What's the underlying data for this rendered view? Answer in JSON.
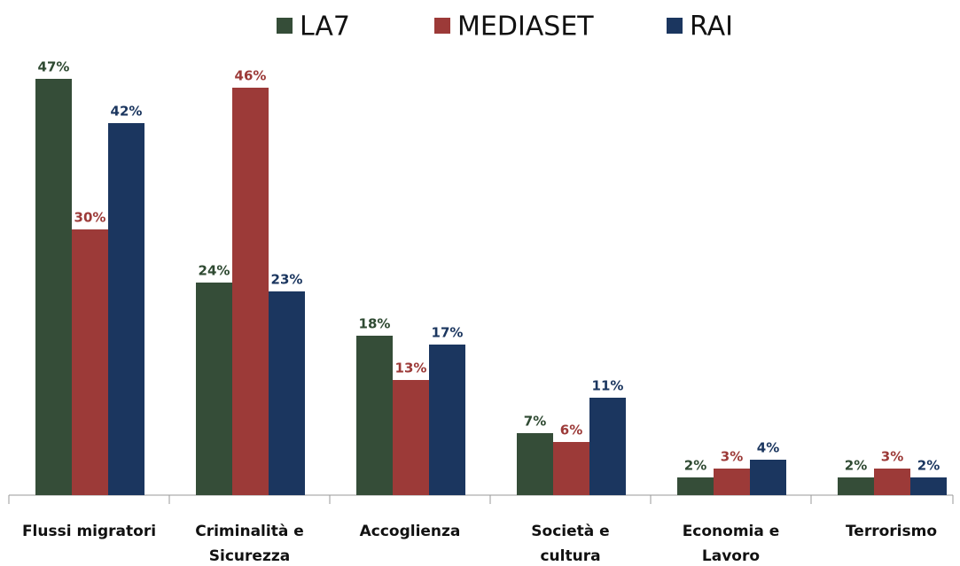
{
  "chart_data": {
    "type": "bar",
    "categories": [
      "Flussi migratori",
      "Criminalità e\nSicurezza",
      "Accoglienza",
      "Società e\ncultura",
      "Economia e\nLavoro",
      "Terrorismo"
    ],
    "series": [
      {
        "name": "LA7",
        "color": "#354d38",
        "label_color": "#2f4a32",
        "values": [
          47,
          24,
          18,
          7,
          2,
          2
        ],
        "value_labels": [
          "47%",
          "24%",
          "18%",
          "7%",
          "2%",
          "2%"
        ]
      },
      {
        "name": "MEDIASET",
        "color": "#9c3a38",
        "label_color": "#9c3a38",
        "values": [
          30,
          46,
          13,
          6,
          3,
          3
        ],
        "value_labels": [
          "30%",
          "46%",
          "13%",
          "6%",
          "3%",
          "3%"
        ]
      },
      {
        "name": "RAI",
        "color": "#1b365f",
        "label_color": "#1b365f",
        "values": [
          42,
          23,
          17,
          11,
          4,
          2
        ],
        "value_labels": [
          "42%",
          "23%",
          "17%",
          "11%",
          "4%",
          "2%"
        ]
      }
    ],
    "legend": "top"
  }
}
